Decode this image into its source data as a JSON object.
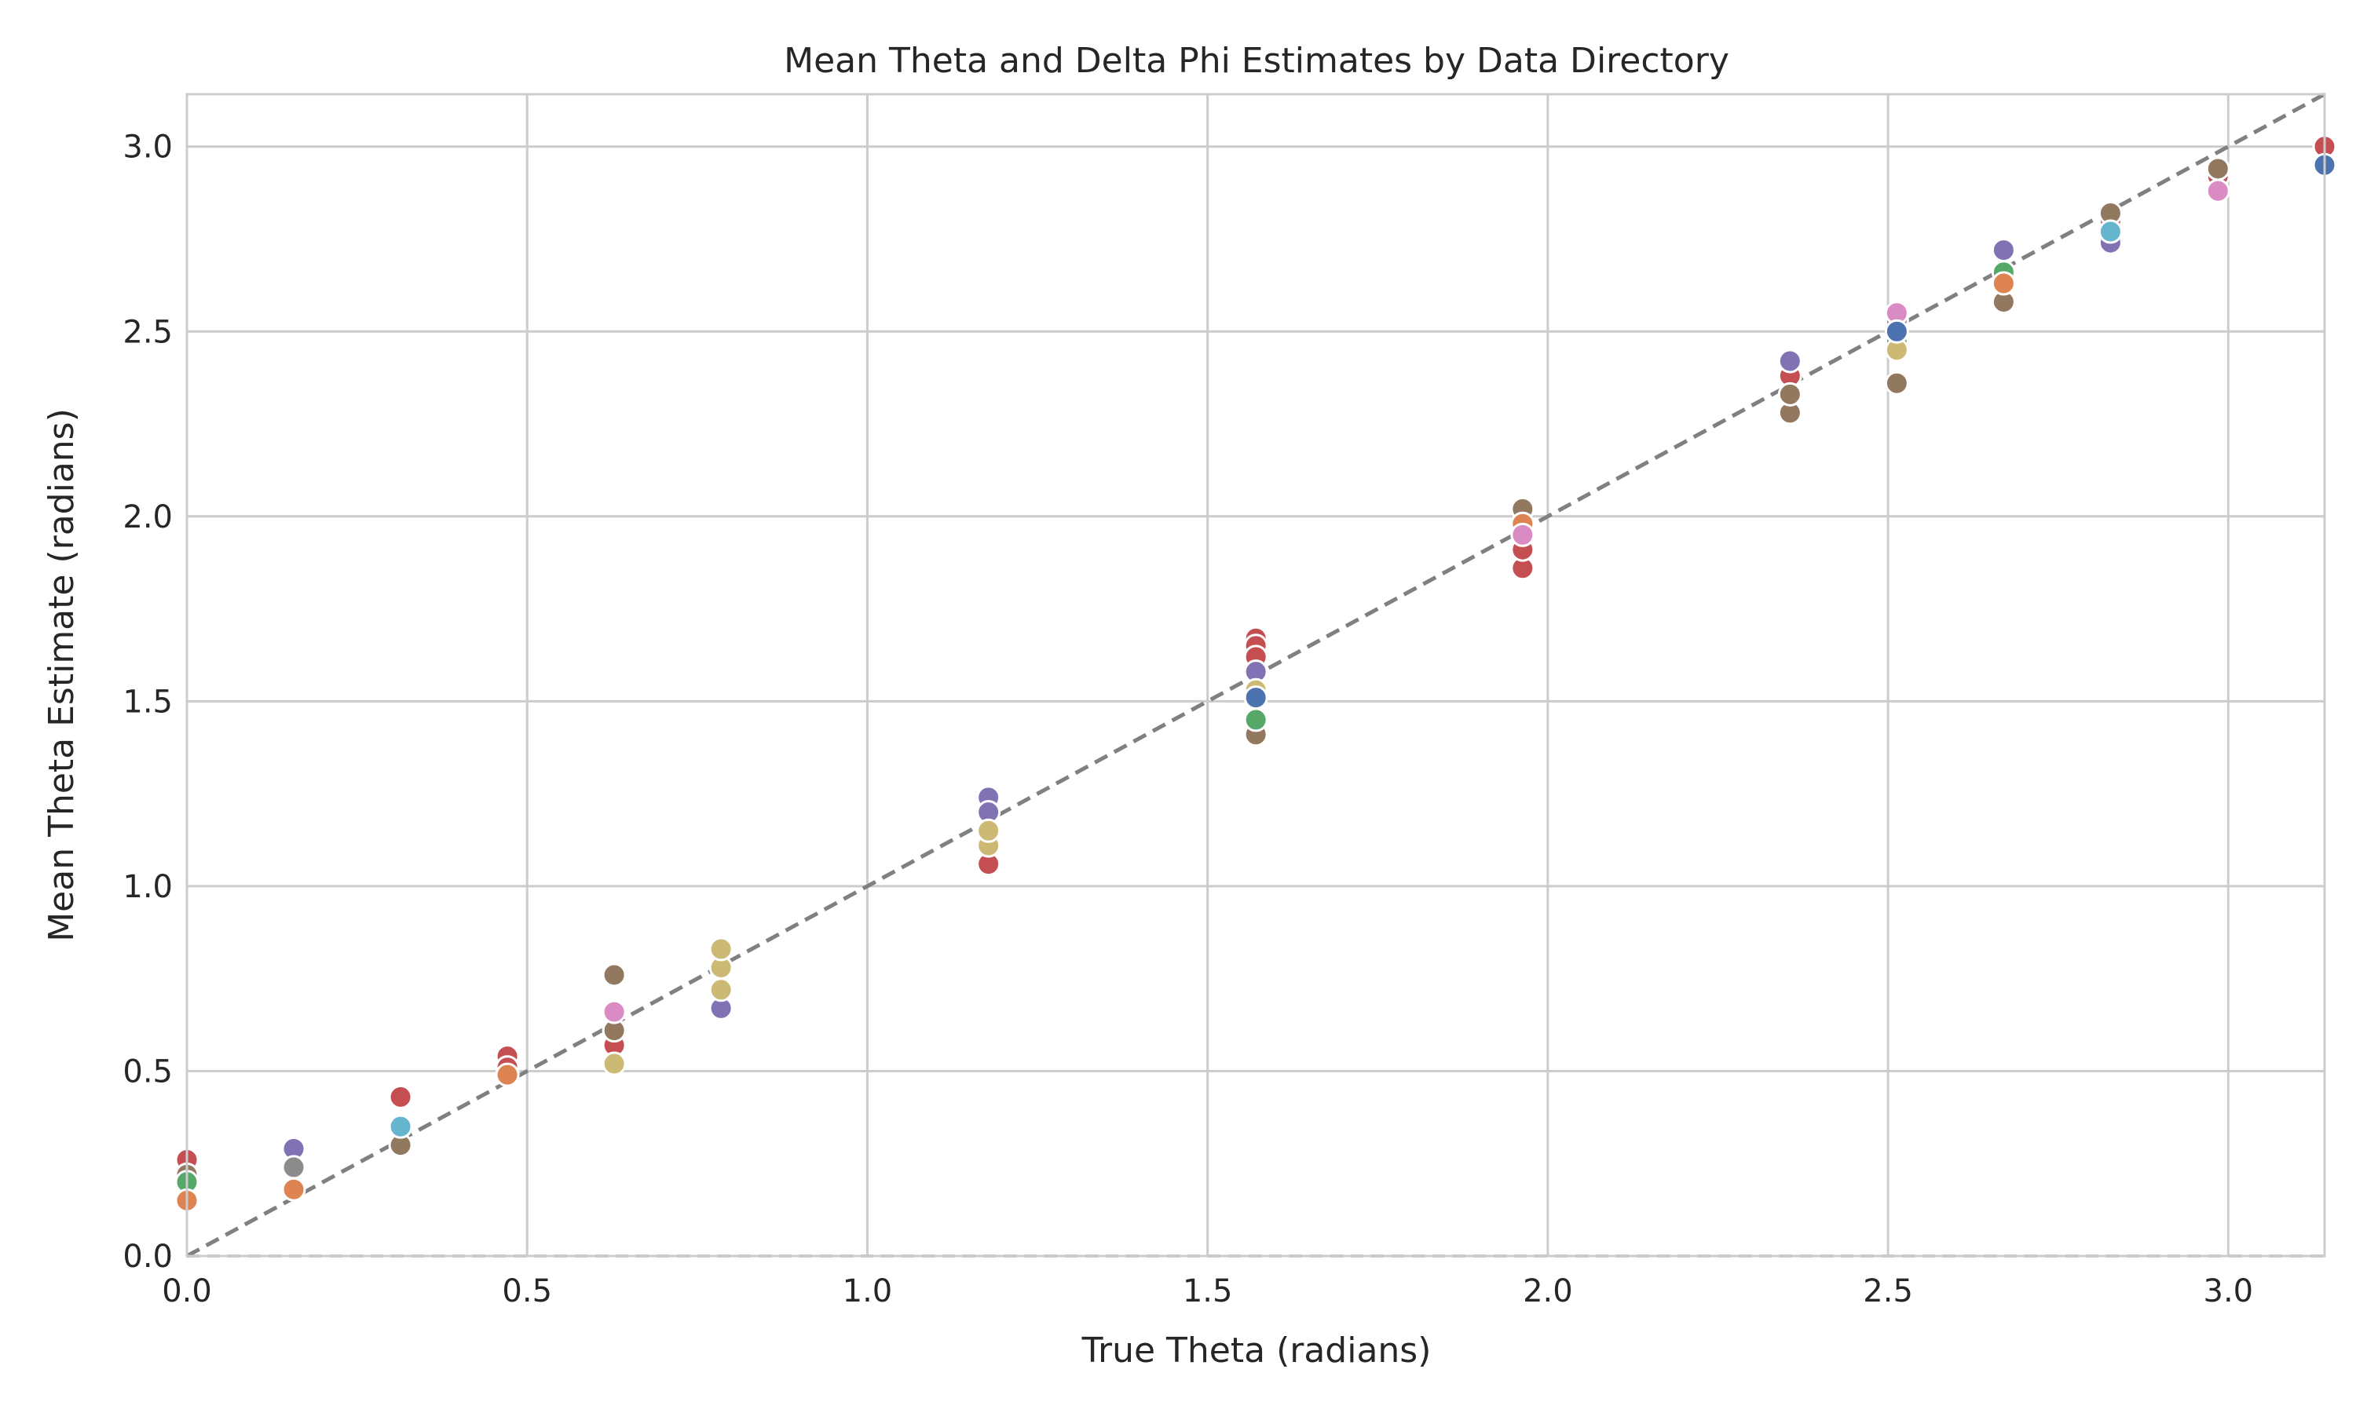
{
  "chart_data": {
    "type": "scatter",
    "title": "Mean Theta and Delta Phi Estimates by Data Directory",
    "xlabel": "True Theta (radians)",
    "ylabel": "Mean Theta Estimate (radians)",
    "xlim": [
      0,
      3.1416
    ],
    "ylim": [
      0,
      3.1416
    ],
    "xticks": [
      0.0,
      0.5,
      1.0,
      1.5,
      2.0,
      2.5,
      3.0
    ],
    "yticks": [
      0.0,
      0.5,
      1.0,
      1.5,
      2.0,
      2.5,
      3.0
    ],
    "xtick_labels": [
      "0.0",
      "0.5",
      "1.0",
      "1.5",
      "2.0",
      "2.5",
      "3.0"
    ],
    "ytick_labels": [
      "0.0",
      "0.5",
      "1.0",
      "1.5",
      "2.0",
      "2.5",
      "3.0"
    ],
    "grid": true,
    "reference_line": {
      "from": [
        0,
        0
      ],
      "to": [
        3.1416,
        3.1416
      ],
      "style": "dashed",
      "color": "#808080"
    },
    "baseline": {
      "y": 0,
      "style": "dashed",
      "color": "#bfbfbf"
    },
    "palette": {
      "blue": "#4c72b0",
      "orange": "#dd8452",
      "green": "#55a868",
      "red": "#c44e52",
      "purple": "#8172b3",
      "brown": "#937860",
      "pink": "#da8bc3",
      "gray": "#8c8c8c",
      "olive": "#ccb974",
      "cyan": "#64b5cd"
    },
    "series": [
      {
        "color": "#c44e52",
        "points": [
          [
            0.0,
            0.26
          ],
          [
            0.314,
            0.43
          ],
          [
            0.471,
            0.54
          ],
          [
            0.471,
            0.51
          ],
          [
            0.628,
            0.57
          ],
          [
            1.178,
            1.06
          ],
          [
            1.571,
            1.67
          ],
          [
            1.571,
            1.65
          ],
          [
            1.571,
            1.62
          ],
          [
            1.963,
            1.86
          ],
          [
            1.963,
            1.91
          ],
          [
            2.356,
            2.38
          ],
          [
            2.513,
            2.51
          ],
          [
            2.827,
            2.8
          ],
          [
            2.985,
            2.92
          ],
          [
            3.1416,
            3.0
          ]
        ]
      },
      {
        "color": "#8172b3",
        "points": [
          [
            0.157,
            0.29
          ],
          [
            0.785,
            0.67
          ],
          [
            1.178,
            1.24
          ],
          [
            1.178,
            1.2
          ],
          [
            1.571,
            1.58
          ],
          [
            2.356,
            2.42
          ],
          [
            2.513,
            2.53
          ],
          [
            2.67,
            2.72
          ],
          [
            2.827,
            2.74
          ]
        ]
      },
      {
        "color": "#937860",
        "points": [
          [
            0.0,
            0.22
          ],
          [
            0.314,
            0.3
          ],
          [
            0.628,
            0.76
          ],
          [
            0.628,
            0.61
          ],
          [
            1.571,
            1.41
          ],
          [
            1.963,
            2.02
          ],
          [
            2.356,
            2.28
          ],
          [
            2.356,
            2.33
          ],
          [
            2.513,
            2.36
          ],
          [
            2.67,
            2.58
          ],
          [
            2.827,
            2.82
          ],
          [
            2.985,
            2.94
          ]
        ]
      },
      {
        "color": "#55a868",
        "points": [
          [
            0.0,
            0.2
          ],
          [
            1.571,
            1.45
          ],
          [
            2.513,
            2.47
          ],
          [
            2.67,
            2.66
          ]
        ]
      },
      {
        "color": "#dd8452",
        "points": [
          [
            0.0,
            0.15
          ],
          [
            0.157,
            0.18
          ],
          [
            0.471,
            0.49
          ],
          [
            1.963,
            1.98
          ],
          [
            2.67,
            2.63
          ]
        ]
      },
      {
        "color": "#ccb974",
        "points": [
          [
            0.628,
            0.52
          ],
          [
            0.785,
            0.72
          ],
          [
            0.785,
            0.78
          ],
          [
            0.785,
            0.83
          ],
          [
            1.178,
            1.11
          ],
          [
            1.178,
            1.15
          ],
          [
            1.571,
            1.53
          ],
          [
            2.513,
            2.45
          ]
        ]
      },
      {
        "color": "#da8bc3",
        "points": [
          [
            0.628,
            0.66
          ],
          [
            1.963,
            1.95
          ],
          [
            2.513,
            2.55
          ],
          [
            2.985,
            2.88
          ]
        ]
      },
      {
        "color": "#64b5cd",
        "points": [
          [
            0.314,
            0.35
          ],
          [
            2.827,
            2.77
          ]
        ]
      },
      {
        "color": "#8c8c8c",
        "points": [
          [
            0.157,
            0.24
          ]
        ]
      },
      {
        "color": "#4c72b0",
        "points": [
          [
            1.571,
            1.51
          ],
          [
            2.513,
            2.5
          ],
          [
            3.1416,
            2.95
          ]
        ]
      }
    ]
  }
}
